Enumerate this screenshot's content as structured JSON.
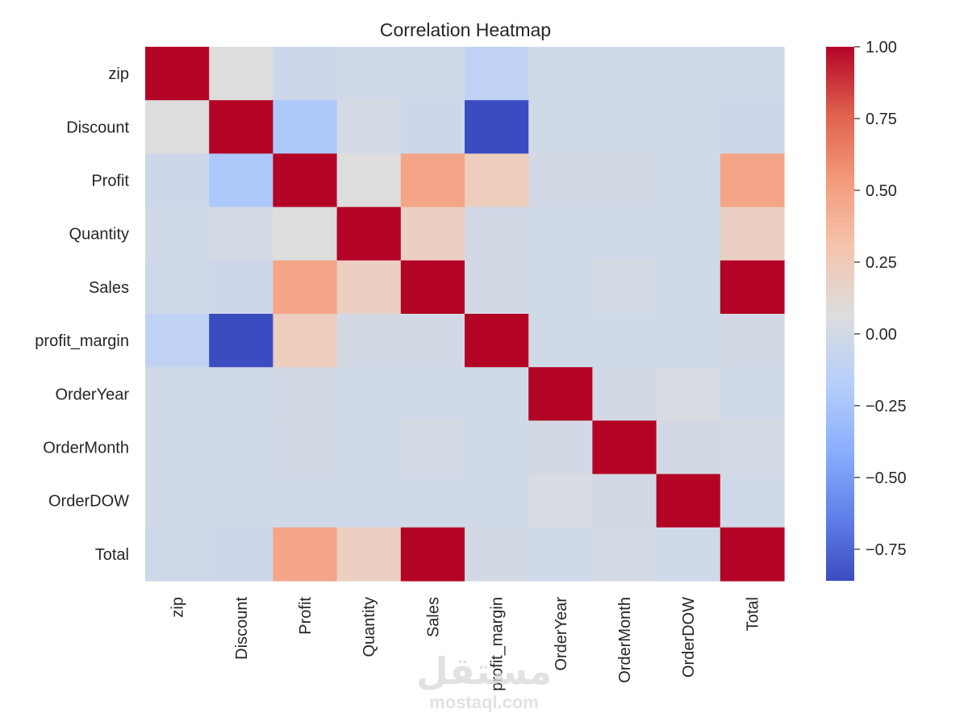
{
  "chart_data": {
    "type": "heatmap",
    "title": "Correlation Heatmap",
    "rows": [
      "zip",
      "Discount",
      "Profit",
      "Quantity",
      "Sales",
      "profit_margin",
      "OrderYear",
      "OrderMonth",
      "OrderDOW",
      "Total"
    ],
    "columns": [
      "zip",
      "Discount",
      "Profit",
      "Quantity",
      "Sales",
      "profit_margin",
      "OrderYear",
      "OrderMonth",
      "OrderDOW",
      "Total"
    ],
    "values": [
      [
        1.0,
        0.07,
        -0.03,
        -0.01,
        -0.02,
        -0.12,
        -0.01,
        -0.01,
        -0.01,
        -0.02
      ],
      [
        0.07,
        1.0,
        -0.22,
        0.01,
        -0.03,
        -0.86,
        -0.01,
        -0.01,
        -0.01,
        -0.03
      ],
      [
        -0.03,
        -0.22,
        1.0,
        0.07,
        0.48,
        0.22,
        -0.0,
        -0.0,
        -0.01,
        0.48
      ],
      [
        -0.01,
        0.01,
        0.07,
        1.0,
        0.2,
        -0.0,
        -0.01,
        -0.01,
        -0.02,
        0.2
      ],
      [
        -0.02,
        -0.03,
        0.48,
        0.2,
        1.0,
        -0.0,
        -0.01,
        0.01,
        -0.01,
        1.0
      ],
      [
        -0.12,
        -0.86,
        0.22,
        -0.0,
        -0.0,
        1.0,
        -0.01,
        -0.01,
        -0.01,
        -0.0
      ],
      [
        -0.01,
        -0.01,
        -0.0,
        -0.01,
        -0.01,
        -0.01,
        1.0,
        -0.0,
        0.04,
        -0.01
      ],
      [
        -0.01,
        -0.01,
        -0.0,
        -0.01,
        0.01,
        -0.01,
        -0.0,
        1.0,
        -0.0,
        0.01
      ],
      [
        -0.01,
        -0.01,
        -0.01,
        -0.02,
        -0.01,
        -0.01,
        0.04,
        -0.0,
        1.0,
        -0.01
      ],
      [
        -0.02,
        -0.03,
        0.48,
        0.2,
        1.0,
        -0.0,
        -0.01,
        0.01,
        -0.01,
        1.0
      ]
    ],
    "colormap": "coolwarm",
    "vmin": -0.86,
    "vmax": 1.0,
    "colorbar_ticks": [
      "1.00",
      "0.75",
      "0.50",
      "0.25",
      "0.00",
      "−0.25",
      "−0.50",
      "−0.75"
    ],
    "colorbar_tick_values": [
      1.0,
      0.75,
      0.5,
      0.25,
      0.0,
      -0.25,
      -0.5,
      -0.75
    ]
  },
  "watermark": {
    "arabic": "مستقل",
    "latin": "mostaql.com"
  }
}
